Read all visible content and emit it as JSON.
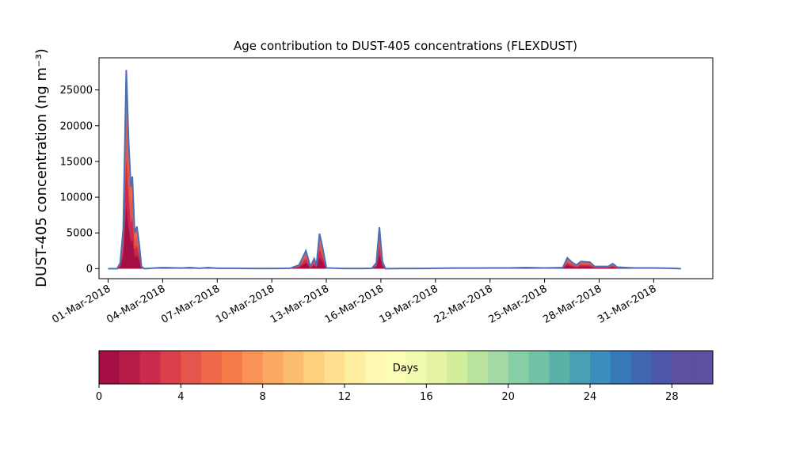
{
  "chart_data": {
    "type": "area",
    "title": "Age contribution to DUST-405 concentrations (FLEXDUST)",
    "xlabel": "",
    "ylabel": "DUST-405 concentration (ng m⁻³)",
    "x_ticks": [
      "01-Mar-2018",
      "04-Mar-2018",
      "07-Mar-2018",
      "10-Mar-2018",
      "13-Mar-2018",
      "16-Mar-2018",
      "19-Mar-2018",
      "22-Mar-2018",
      "25-Mar-2018",
      "28-Mar-2018",
      "31-Mar-2018"
    ],
    "y_ticks": [
      "0",
      "5000",
      "10000",
      "15000",
      "20000",
      "25000"
    ],
    "xlim": [
      "2018-02-28T12:00",
      "2018-04-03T06:00"
    ],
    "ylim": [
      -1400,
      29500
    ],
    "grid": false,
    "series": [
      {
        "color": "#4a6fb5",
        "points": [
          [
            "2018-03-01T00:00",
            0
          ],
          [
            "2018-03-01T12:00",
            0
          ],
          [
            "2018-03-01T16:00",
            800
          ],
          [
            "2018-03-01T20:00",
            5500
          ],
          [
            "2018-03-02T00:00",
            27800
          ],
          [
            "2018-03-02T03:00",
            18000
          ],
          [
            "2018-03-02T06:00",
            11500
          ],
          [
            "2018-03-02T08:00",
            12900
          ],
          [
            "2018-03-02T11:00",
            5000
          ],
          [
            "2018-03-02T14:00",
            5900
          ],
          [
            "2018-03-02T17:00",
            3500
          ],
          [
            "2018-03-02T20:00",
            300
          ],
          [
            "2018-03-03T00:00",
            0
          ],
          [
            "2018-03-04T00:00",
            150
          ],
          [
            "2018-03-05T00:00",
            80
          ],
          [
            "2018-03-05T12:00",
            150
          ],
          [
            "2018-03-06T00:00",
            50
          ],
          [
            "2018-03-06T12:00",
            150
          ],
          [
            "2018-03-07T00:00",
            50
          ],
          [
            "2018-03-08T00:00",
            50
          ],
          [
            "2018-03-09T00:00",
            30
          ],
          [
            "2018-03-10T00:00",
            30
          ],
          [
            "2018-03-11T00:00",
            50
          ],
          [
            "2018-03-11T12:00",
            500
          ],
          [
            "2018-03-11T21:00",
            2500
          ],
          [
            "2018-03-12T03:00",
            300
          ],
          [
            "2018-03-12T08:00",
            1400
          ],
          [
            "2018-03-12T11:00",
            500
          ],
          [
            "2018-03-12T15:00",
            4900
          ],
          [
            "2018-03-12T19:00",
            3000
          ],
          [
            "2018-03-13T00:00",
            100
          ],
          [
            "2018-03-14T00:00",
            30
          ],
          [
            "2018-03-15T00:00",
            30
          ],
          [
            "2018-03-15T12:00",
            50
          ],
          [
            "2018-03-15T18:00",
            800
          ],
          [
            "2018-03-15T22:00",
            5800
          ],
          [
            "2018-03-16T02:00",
            1000
          ],
          [
            "2018-03-16T06:00",
            0
          ],
          [
            "2018-03-17T00:00",
            30
          ],
          [
            "2018-03-18T00:00",
            30
          ],
          [
            "2018-03-19T00:00",
            50
          ],
          [
            "2018-03-20T00:00",
            80
          ],
          [
            "2018-03-21T00:00",
            80
          ],
          [
            "2018-03-22T00:00",
            100
          ],
          [
            "2018-03-23T00:00",
            100
          ],
          [
            "2018-03-24T00:00",
            150
          ],
          [
            "2018-03-25T00:00",
            100
          ],
          [
            "2018-03-26T00:00",
            150
          ],
          [
            "2018-03-26T06:00",
            1500
          ],
          [
            "2018-03-26T12:00",
            900
          ],
          [
            "2018-03-26T18:00",
            500
          ],
          [
            "2018-03-27T00:00",
            1000
          ],
          [
            "2018-03-27T12:00",
            900
          ],
          [
            "2018-03-27T18:00",
            300
          ],
          [
            "2018-03-28T00:00",
            300
          ],
          [
            "2018-03-28T12:00",
            300
          ],
          [
            "2018-03-28T18:00",
            700
          ],
          [
            "2018-03-29T00:00",
            200
          ],
          [
            "2018-03-30T00:00",
            100
          ],
          [
            "2018-03-31T00:00",
            100
          ],
          [
            "2018-04-01T00:00",
            50
          ],
          [
            "2018-04-01T12:00",
            0
          ]
        ]
      }
    ]
  },
  "colorbar": {
    "label": "Days",
    "ticks": [
      "0",
      "4",
      "8",
      "12",
      "16",
      "20",
      "24",
      "28"
    ],
    "range": [
      0,
      30
    ],
    "colors": [
      "#a50f46",
      "#b81c49",
      "#cb2b4c",
      "#da3f4c",
      "#e4554c",
      "#ee6849",
      "#f57c49",
      "#f99254",
      "#fba863",
      "#fdbd70",
      "#fed07e",
      "#fee08f",
      "#ffeda0",
      "#fff8b5",
      "#fcfeb8",
      "#f2fab0",
      "#e4f4a0",
      "#d2ed9c",
      "#bae39e",
      "#a2d9a4",
      "#87cfa4",
      "#70c3a5",
      "#5bb1a8",
      "#4aa0b2",
      "#3a8ebe",
      "#377ab8",
      "#4167b0",
      "#4d57a7",
      "#5e4fa2",
      "#5e4fa2"
    ]
  }
}
